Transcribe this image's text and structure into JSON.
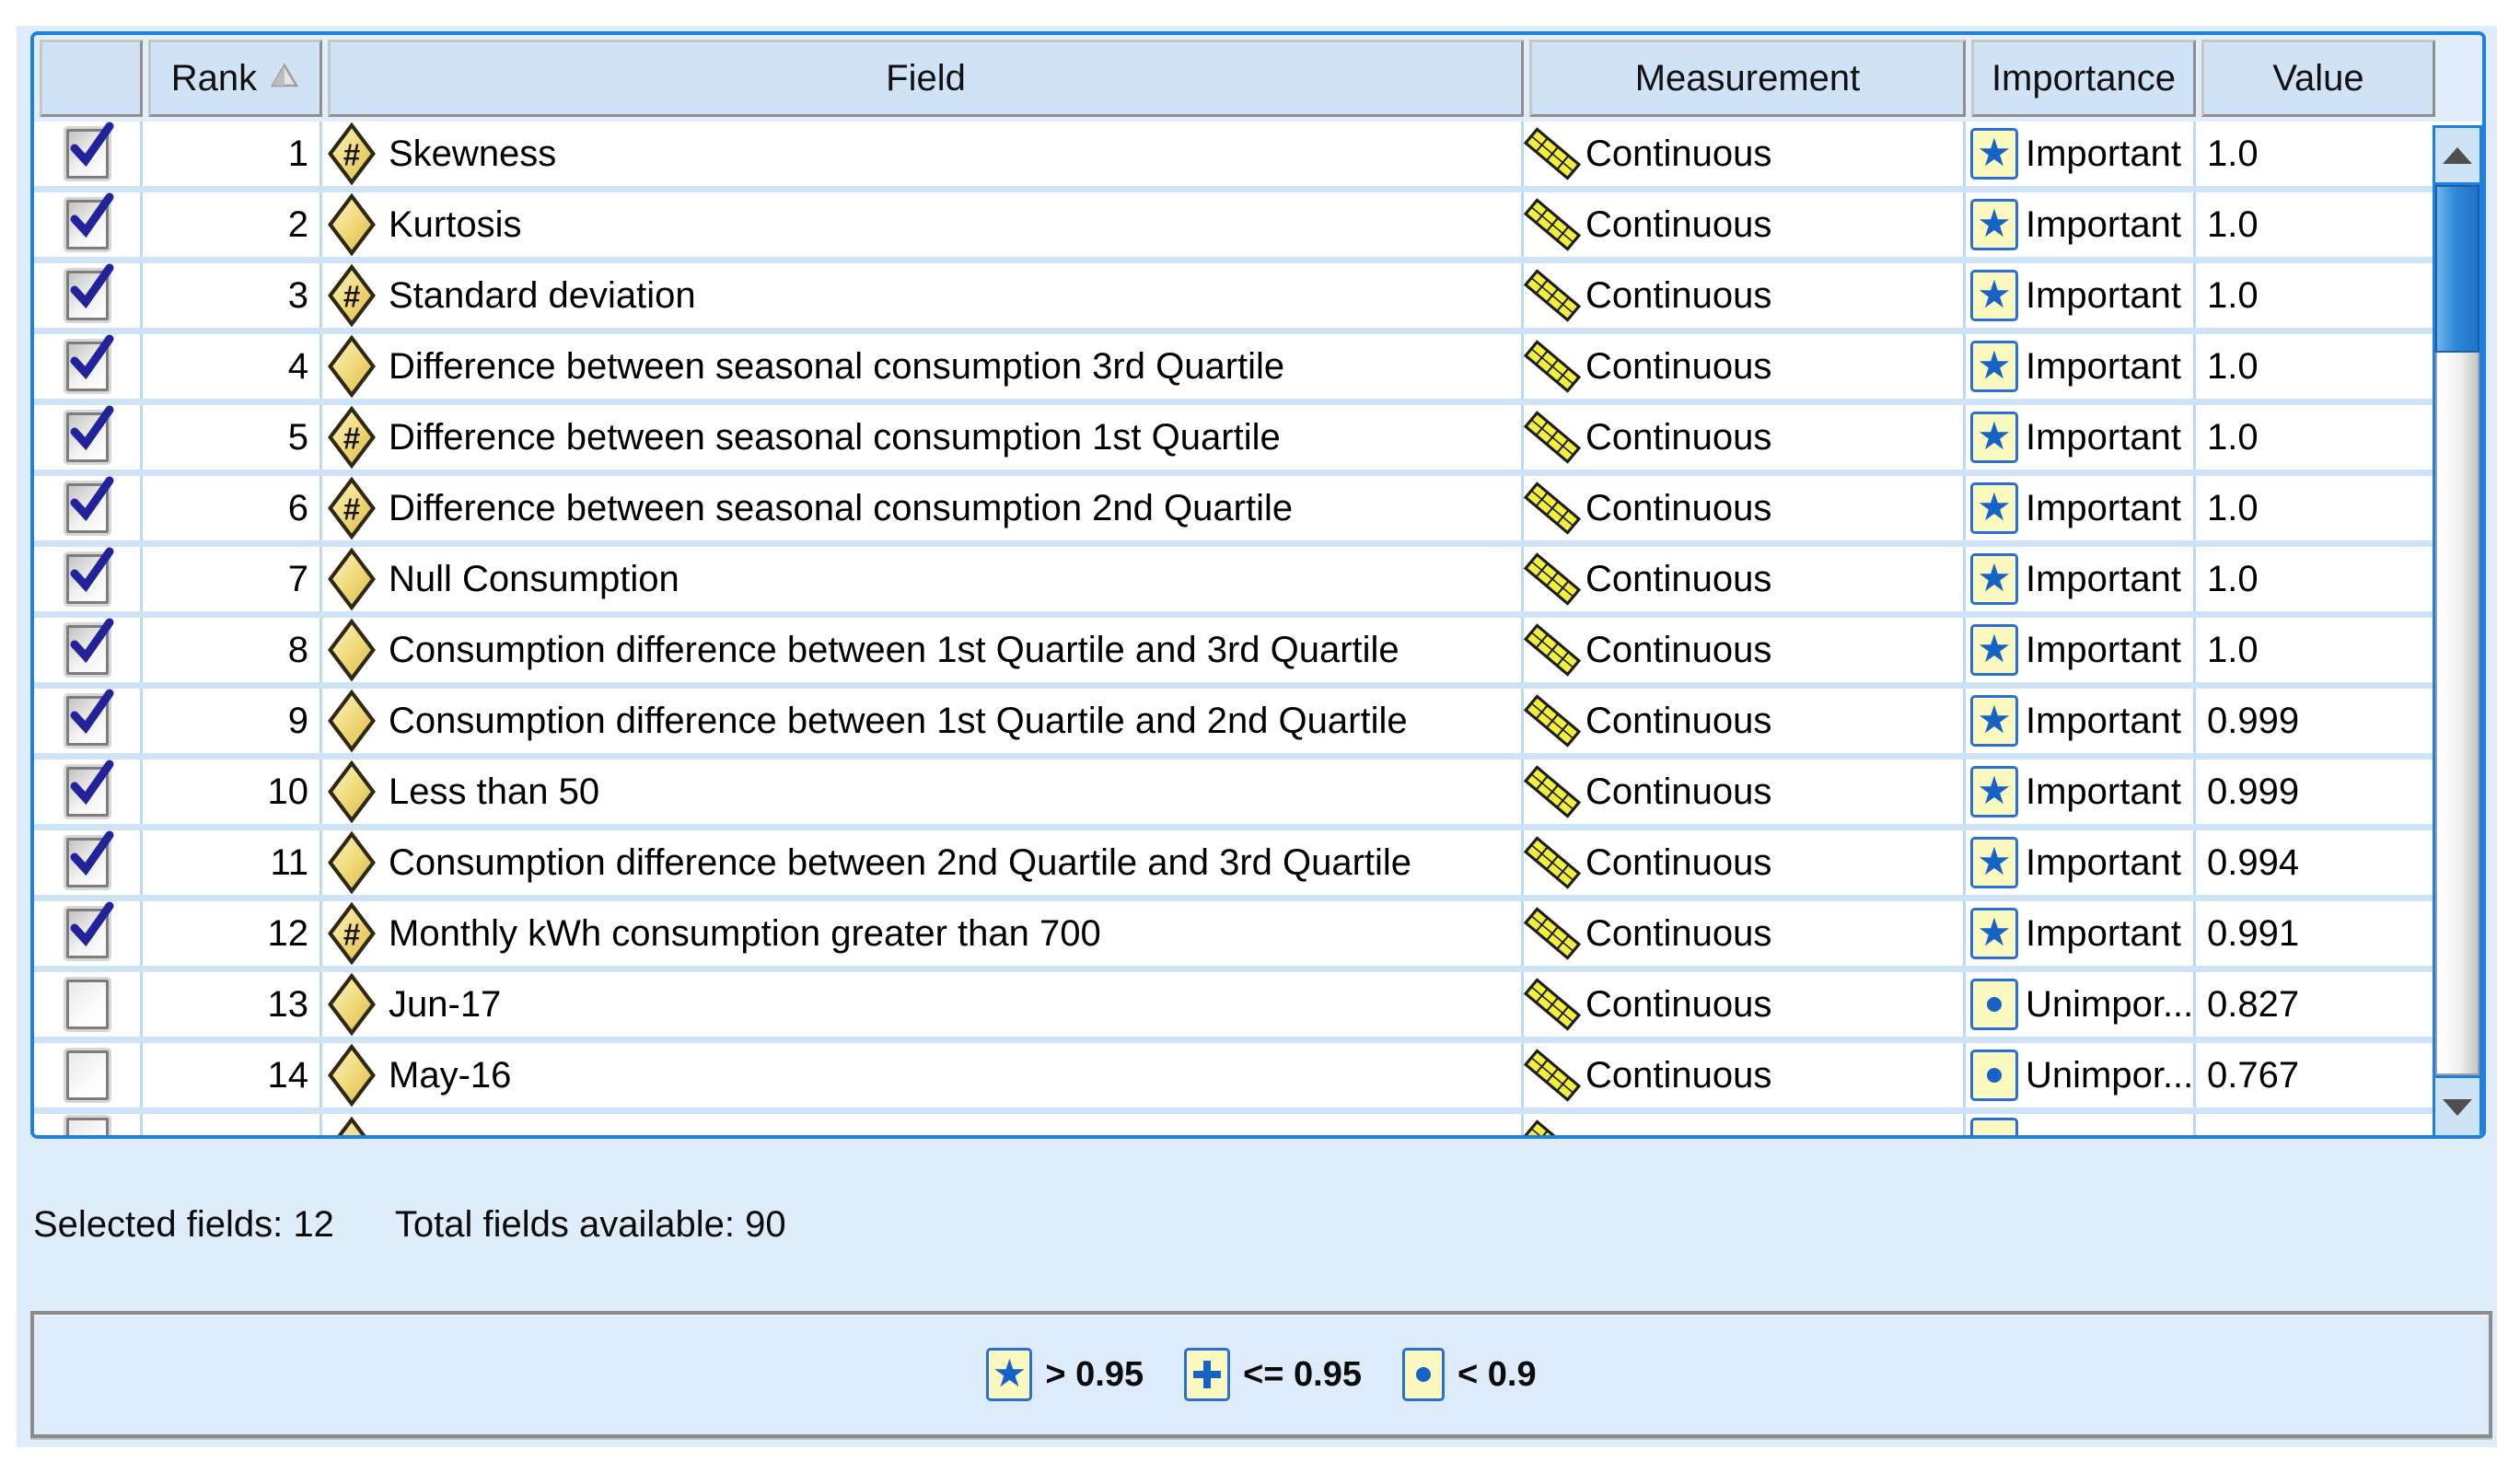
{
  "table": {
    "columns": [
      {
        "label": ""
      },
      {
        "label": "Rank",
        "sort": "ascending",
        "sort_icon": "sort-ascending-triangle"
      },
      {
        "label": "Field"
      },
      {
        "label": "Measurement"
      },
      {
        "label": "Importance"
      },
      {
        "label": "Value"
      }
    ],
    "rows": [
      {
        "checked": true,
        "rank": "1",
        "field": "Skewness",
        "field_icon": "diamond-hash",
        "measurement": "Continuous",
        "importance": "Important",
        "importance_icon": "star",
        "value": "1.0"
      },
      {
        "checked": true,
        "rank": "2",
        "field": "Kurtosis",
        "field_icon": "diamond",
        "measurement": "Continuous",
        "importance": "Important",
        "importance_icon": "star",
        "value": "1.0"
      },
      {
        "checked": true,
        "rank": "3",
        "field": "Standard deviation",
        "field_icon": "diamond-hash",
        "measurement": "Continuous",
        "importance": "Important",
        "importance_icon": "star",
        "value": "1.0"
      },
      {
        "checked": true,
        "rank": "4",
        "field": "Difference between seasonal consumption 3rd Quartile",
        "field_icon": "diamond",
        "measurement": "Continuous",
        "importance": "Important",
        "importance_icon": "star",
        "value": "1.0"
      },
      {
        "checked": true,
        "rank": "5",
        "field": "Difference between seasonal consumption 1st Quartile",
        "field_icon": "diamond-hash",
        "measurement": "Continuous",
        "importance": "Important",
        "importance_icon": "star",
        "value": "1.0"
      },
      {
        "checked": true,
        "rank": "6",
        "field": "Difference between seasonal consumption 2nd Quartile",
        "field_icon": "diamond-hash",
        "measurement": "Continuous",
        "importance": "Important",
        "importance_icon": "star",
        "value": "1.0"
      },
      {
        "checked": true,
        "rank": "7",
        "field": "Null Consumption",
        "field_icon": "diamond",
        "measurement": "Continuous",
        "importance": "Important",
        "importance_icon": "star",
        "value": "1.0"
      },
      {
        "checked": true,
        "rank": "8",
        "field": "Consumption difference between 1st Quartile and 3rd Quartile",
        "field_icon": "diamond",
        "measurement": "Continuous",
        "importance": "Important",
        "importance_icon": "star",
        "value": "1.0"
      },
      {
        "checked": true,
        "rank": "9",
        "field": "Consumption difference between 1st Quartile and 2nd Quartile",
        "field_icon": "diamond",
        "measurement": "Continuous",
        "importance": "Important",
        "importance_icon": "star",
        "value": "0.999"
      },
      {
        "checked": true,
        "rank": "10",
        "field": "Less than 50",
        "field_icon": "diamond",
        "measurement": "Continuous",
        "importance": "Important",
        "importance_icon": "star",
        "value": "0.999"
      },
      {
        "checked": true,
        "rank": "11",
        "field": "Consumption difference between 2nd Quartile and 3rd Quartile",
        "field_icon": "diamond",
        "measurement": "Continuous",
        "importance": "Important",
        "importance_icon": "star",
        "value": "0.994"
      },
      {
        "checked": true,
        "rank": "12",
        "field": "Monthly kWh consumption greater than 700",
        "field_icon": "diamond-hash",
        "measurement": "Continuous",
        "importance": "Important",
        "importance_icon": "star",
        "value": "0.991"
      },
      {
        "checked": false,
        "rank": "13",
        "field": "Jun-17",
        "field_icon": "diamond",
        "measurement": "Continuous",
        "importance": "Unimpor...",
        "importance_icon": "dot",
        "value": "0.827"
      },
      {
        "checked": false,
        "rank": "14",
        "field": "May-16",
        "field_icon": "diamond",
        "measurement": "Continuous",
        "importance": "Unimpor...",
        "importance_icon": "dot",
        "value": "0.767"
      },
      {
        "checked": false,
        "rank": "",
        "field": "",
        "field_icon": "diamond",
        "measurement": "",
        "importance": "",
        "importance_icon": "dot",
        "value": "",
        "partial": true
      }
    ]
  },
  "summary": {
    "selected_label": "Selected fields:",
    "selected_value": "12",
    "total_label": "Total fields available:",
    "total_value": "90"
  },
  "legend": {
    "items": [
      {
        "icon": "star-badge-icon",
        "label": "> 0.95"
      },
      {
        "icon": "plus-badge-icon",
        "label": "<= 0.95"
      },
      {
        "icon": "dot-badge-icon",
        "label": "< 0.9"
      }
    ]
  },
  "scrollbar": {
    "orientation": "vertical",
    "up_icon": "arrow-up-icon",
    "down_icon": "arrow-down-icon",
    "thumb_position": "top"
  },
  "colors": {
    "accent_blue_border": "#2080e0",
    "panel_background": "#dfecfa",
    "header_cell_background": "#cfe2f6",
    "row_separator": "#cfe3f7",
    "column_separator": "#bcd8f2",
    "badge_background": "#fcf9c0",
    "badge_border": "#2a6fd4",
    "badge_glyph_blue": "#1563c5",
    "diamond_yellow": "#f0da7a",
    "ruler_yellow": "#f3ef3d",
    "checkmark_navy": "#22229b"
  }
}
